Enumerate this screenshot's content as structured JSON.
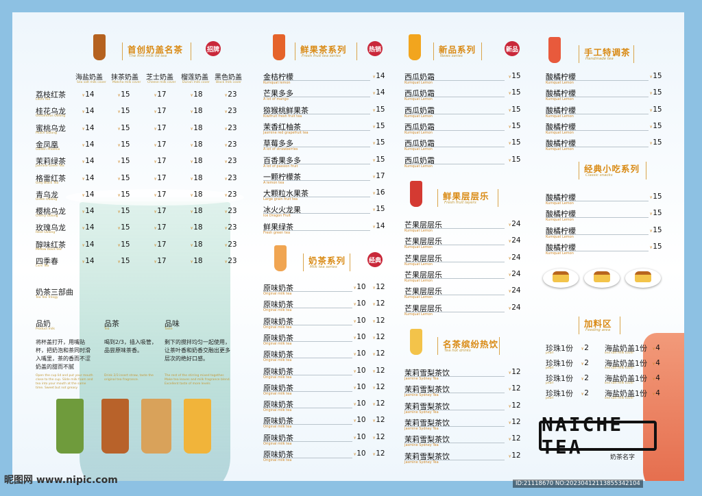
{
  "colors": {
    "accent": "#d98a14",
    "badge": "#c9283a",
    "frame": "#8dc1e3"
  },
  "sec1": {
    "title": "首创奶盖名茶",
    "sub": "The first milk lid tea",
    "badge": "招牌",
    "cols": [
      {
        "cn": "海盐奶盖",
        "en": "Sea salt milk cover"
      },
      {
        "cn": "抹茶奶盖",
        "en": "Matcha milk cover"
      },
      {
        "cn": "芝士奶盖",
        "en": "Cheese milk cover"
      },
      {
        "cn": "榴莲奶盖",
        "en": "Durian milk cover"
      },
      {
        "cn": "黑色奶盖",
        "en": "Black milk cover"
      }
    ],
    "rows": [
      {
        "cn": "荔枝红茶",
        "en": "Litchi Tea",
        "p": [
          "14",
          "15",
          "17",
          "18",
          "23"
        ]
      },
      {
        "cn": "桂花乌龙",
        "en": "Osmanthus Oolong",
        "p": [
          "14",
          "15",
          "17",
          "18",
          "23"
        ]
      },
      {
        "cn": "蜜桃乌龙",
        "en": "Peach Oolong",
        "p": [
          "14",
          "15",
          "17",
          "18",
          "23"
        ]
      },
      {
        "cn": "金凤凰",
        "en": "Golden Phoenix",
        "p": [
          "14",
          "15",
          "17",
          "18",
          "23"
        ]
      },
      {
        "cn": "茉莉绿茶",
        "en": "Jasmine Green Tea",
        "p": [
          "14",
          "15",
          "17",
          "18",
          "23"
        ]
      },
      {
        "cn": "格雷红茶",
        "en": "Grey Black Tea",
        "p": [
          "14",
          "15",
          "17",
          "18",
          "23"
        ]
      },
      {
        "cn": "青乌龙",
        "en": "Green Oolong",
        "p": [
          "14",
          "15",
          "17",
          "18",
          "23"
        ]
      },
      {
        "cn": "樱桃乌龙",
        "en": "Cherry Oolong",
        "p": [
          "14",
          "15",
          "17",
          "18",
          "23"
        ]
      },
      {
        "cn": "玫瑰乌龙",
        "en": "Rose Oolong",
        "p": [
          "14",
          "15",
          "17",
          "18",
          "23"
        ]
      },
      {
        "cn": "醇味红茶",
        "en": "Mellow black tea",
        "p": [
          "14",
          "15",
          "17",
          "18",
          "23"
        ]
      },
      {
        "cn": "四季春",
        "en": "Lichi Tea",
        "p": [
          "14",
          "15",
          "17",
          "18",
          "23"
        ]
      }
    ]
  },
  "trilogy": {
    "title": "奶茶三部曲",
    "en": "Tea Tea Trilogy",
    "steps": [
      {
        "h": "品奶",
        "en": "Product milk",
        "t": "将杯盖打开，用嘴贴杯，把奶泡和茶同时滑入嘴里，茶的香而不涩 奶盖的甜而不腻",
        "e": "Open the cup lid and put your mouth close to the cup. Slide milk foam and tea into your mouth at the same time. Sweet but not greasy"
      },
      {
        "h": "品茶",
        "en": "Tea",
        "t": "喝到2/3，插入吸管，品尝原味茶香。",
        "e": "Drink 2/3 insert straw, taste the original tea fragrance."
      },
      {
        "h": "品味",
        "en": "Taste",
        "t": "剩下的搅拌均匀一起使用，让茶叶香和奶香交融出更多层次的绝好口感。",
        "e": "The rest of the stirring mixed together. Make tea leaves and milk fragrance blend. Excellent taste of more levels"
      }
    ]
  },
  "sec2": {
    "title": "鲜果茶系列",
    "sub": "Fresh fruit tea series",
    "badge": "热销",
    "items": [
      {
        "cn": "金桔柠檬",
        "en": "Kumquat lemon",
        "p": "14"
      },
      {
        "cn": "芒果多多",
        "en": "A lot of mango",
        "p": "14"
      },
      {
        "cn": "猕猴桃鲜果茶",
        "en": "Kiwifruit fresh fruit tea",
        "p": "15"
      },
      {
        "cn": "茉香红柚茶",
        "en": "Jasmine red grapefruit tea",
        "p": "15"
      },
      {
        "cn": "草莓多多",
        "en": "A lot of strawberries",
        "p": "15"
      },
      {
        "cn": "百香果多多",
        "en": "A lot of passion fruit",
        "p": "15"
      },
      {
        "cn": "一颗柠檬茶",
        "en": "A lemon tea",
        "p": "17"
      },
      {
        "cn": "大颗粒水果茶",
        "en": "Large grain fruit tea",
        "p": "16"
      },
      {
        "cn": "冰火火龙果",
        "en": "Ice Dragon Fruit",
        "p": "15"
      },
      {
        "cn": "鲜果绿茶",
        "en": "Fresh green tea",
        "p": "14"
      }
    ]
  },
  "sec3": {
    "title": "奶茶系列",
    "sub": "Milk tea series",
    "badge": "经典",
    "items": [
      {
        "cn": "原味奶茶",
        "en": "Original milk tea",
        "p1": "10",
        "p2": "12"
      },
      {
        "cn": "原味奶茶",
        "en": "Original milk tea",
        "p1": "10",
        "p2": "12"
      },
      {
        "cn": "原味奶茶",
        "en": "Original milk tea",
        "p1": "10",
        "p2": "12"
      },
      {
        "cn": "原味奶茶",
        "en": "Original milk tea",
        "p1": "10",
        "p2": "12"
      },
      {
        "cn": "原味奶茶",
        "en": "Original milk tea",
        "p1": "10",
        "p2": "12"
      },
      {
        "cn": "原味奶茶",
        "en": "Original milk tea",
        "p1": "10",
        "p2": "12"
      },
      {
        "cn": "原味奶茶",
        "en": "Original milk tea",
        "p1": "10",
        "p2": "12"
      },
      {
        "cn": "原味奶茶",
        "en": "Original milk tea",
        "p1": "10",
        "p2": "12"
      },
      {
        "cn": "原味奶茶",
        "en": "Original milk tea",
        "p1": "10",
        "p2": "12"
      },
      {
        "cn": "原味奶茶",
        "en": "Original milk tea",
        "p1": "10",
        "p2": "12"
      },
      {
        "cn": "原味奶茶",
        "en": "Original milk tea",
        "p1": "10",
        "p2": "12"
      }
    ]
  },
  "sec4": {
    "title": "新品系列",
    "sub": "News series",
    "badge": "新品",
    "items": [
      {
        "cn": "西瓜奶霜",
        "en": "Kumquat Lemon",
        "p": "15"
      },
      {
        "cn": "西瓜奶霜",
        "en": "Kumquat Lemon",
        "p": "15"
      },
      {
        "cn": "西瓜奶霜",
        "en": "Kumquat Lemon",
        "p": "15"
      },
      {
        "cn": "西瓜奶霜",
        "en": "Kumquat Lemon",
        "p": "15"
      },
      {
        "cn": "西瓜奶霜",
        "en": "Kumquat Lemon",
        "p": "15"
      },
      {
        "cn": "西瓜奶霜",
        "en": "Kumquat Lemon",
        "p": "15"
      }
    ]
  },
  "sec5": {
    "title": "鲜果层层乐",
    "sub": "Fresh fruit layers",
    "items": [
      {
        "cn": "芒果层层乐",
        "en": "Kumquat Lemon",
        "p": "24"
      },
      {
        "cn": "芒果层层乐",
        "en": "Kumquat Lemon",
        "p": "24"
      },
      {
        "cn": "芒果层层乐",
        "en": "Kumquat Lemon",
        "p": "24"
      },
      {
        "cn": "芒果层层乐",
        "en": "Kumquat Lemon",
        "p": "24"
      },
      {
        "cn": "芒果层层乐",
        "en": "Kumquat Lemon",
        "p": "24"
      },
      {
        "cn": "芒果层层乐",
        "en": "Kumquat Lemon",
        "p": "24"
      }
    ]
  },
  "sec6": {
    "title": "名茶缤纷热饮",
    "sub": "Tea hot drinks",
    "items": [
      {
        "cn": "茉莉雪梨茶饮",
        "en": "Jasmine Sydney Tea",
        "p": "12"
      },
      {
        "cn": "茉莉雪梨茶饮",
        "en": "Jasmine Sydney Tea",
        "p": "12"
      },
      {
        "cn": "茉莉雪梨茶饮",
        "en": "Jasmine Sydney Tea",
        "p": "12"
      },
      {
        "cn": "茉莉雪梨茶饮",
        "en": "Jasmine Sydney Tea",
        "p": "12"
      },
      {
        "cn": "茉莉雪梨茶饮",
        "en": "Jasmine Sydney Tea",
        "p": "12"
      },
      {
        "cn": "茉莉雪梨茶饮",
        "en": "Jasmine Sydney Tea",
        "p": "12"
      }
    ]
  },
  "sec7": {
    "title": "手工特调茶",
    "sub": "Handmade tea",
    "items": [
      {
        "cn": "酸橘柠檬",
        "en": "Kumquat Lemon",
        "p": "15"
      },
      {
        "cn": "酸橘柠檬",
        "en": "Kumquat Lemon",
        "p": "15"
      },
      {
        "cn": "酸橘柠檬",
        "en": "Kumquat Lemon",
        "p": "15"
      },
      {
        "cn": "酸橘柠檬",
        "en": "Kumquat Lemon",
        "p": "15"
      },
      {
        "cn": "酸橘柠檬",
        "en": "Kumquat Lemon",
        "p": "15"
      }
    ]
  },
  "sec8": {
    "title": "经典小吃系列",
    "sub": "Classic snacks",
    "items": [
      {
        "cn": "酸橘柠檬",
        "en": "Kumquat Lemon",
        "p": "15"
      },
      {
        "cn": "酸橘柠檬",
        "en": "Kumquat Lemon",
        "p": "15"
      },
      {
        "cn": "酸橘柠檬",
        "en": "Kumquat Lemon",
        "p": "15"
      },
      {
        "cn": "酸橘柠檬",
        "en": "Kumquat Lemon",
        "p": "15"
      }
    ]
  },
  "sec9": {
    "title": "加料区",
    "sub": "Feeding area",
    "items": [
      {
        "cn": "珍珠1份",
        "en": "pearl",
        "p": "2",
        "cn2": "海盐奶盖1份",
        "en2": "sea salt milk cover",
        "p2": "4"
      },
      {
        "cn": "珍珠1份",
        "en": "pearl",
        "p": "2",
        "cn2": "海盐奶盖1份",
        "en2": "sea salt milk cover",
        "p2": "4"
      },
      {
        "cn": "珍珠1份",
        "en": "pearl",
        "p": "2",
        "cn2": "海盐奶盖1份",
        "en2": "sea salt milk cover",
        "p2": "4"
      },
      {
        "cn": "珍珠1份",
        "en": "pearl",
        "p": "2",
        "cn2": "海盐奶盖1份",
        "en2": "sea salt milk cover",
        "p2": "4"
      }
    ]
  },
  "currency": "¥",
  "logo": {
    "text": "NAICHE TEA",
    "sub": "奶茶名字"
  },
  "watermark": {
    "left": "昵图网 www.nipic.com",
    "right": "ID:21118670 NO:20230412113855342104"
  }
}
